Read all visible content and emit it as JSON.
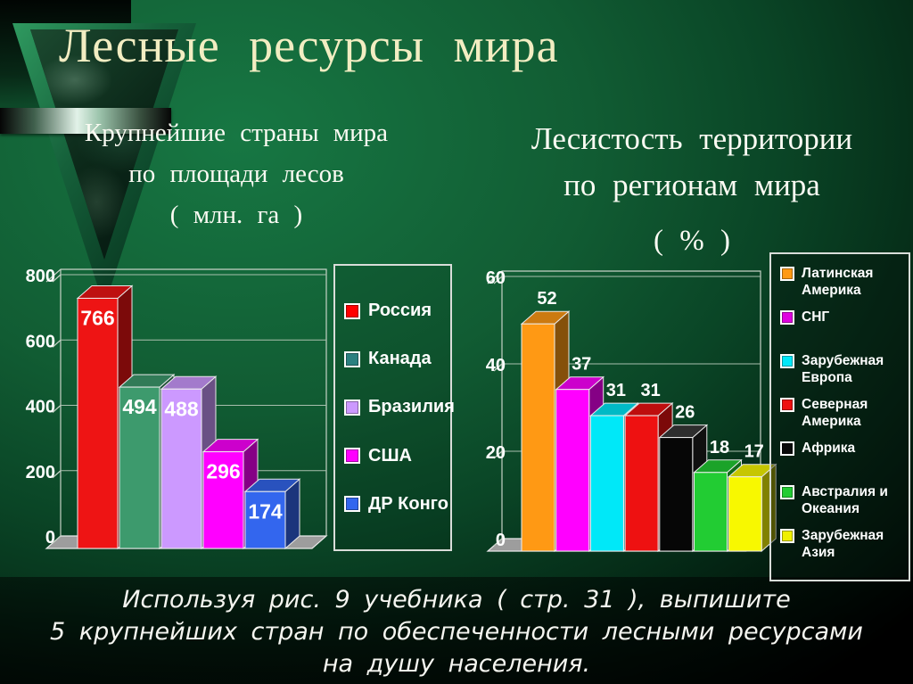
{
  "slide": {
    "title": "Лесные ресурсы мира",
    "task_lines": [
      "Используя рис. 9 учебника ( стр. 31 ),  выпишите",
      "5 крупнейших стран по обеспеченности  лесными ресурсами",
      "на душу населения."
    ]
  },
  "chart_data": [
    {
      "type": "bar",
      "title": "Крупнейшие страны мира по площади лесов ( млн. га )",
      "title_lines": [
        "Крупнейшие страны мира",
        "по площади лесов",
        "( млн. га )"
      ],
      "categories": [
        "Россия",
        "Канада",
        "Бразилия",
        "США",
        "ДР Конго"
      ],
      "values": [
        766,
        494,
        488,
        296,
        174
      ],
      "bar_colors": [
        "#ee1414",
        "#3d9a6d",
        "#cc99ff",
        "#ff00ff",
        "#3366ee"
      ],
      "legend_colors": [
        "#ff0000",
        "#2b8080",
        "#cc99ff",
        "#ff00ff",
        "#3366ee"
      ],
      "xlabel": "",
      "ylabel": "",
      "ylim": [
        0,
        800
      ],
      "yticks": [
        0,
        200,
        400,
        600,
        800
      ],
      "grid": true,
      "legend_position": "right",
      "value_labels": "inside-top",
      "style": "3d-column"
    },
    {
      "type": "bar",
      "title": "Лесистость территории по регионам мира ( % )",
      "title_lines": [
        "Лесистость территории",
        "по регионам мира",
        "( % )"
      ],
      "categories": [
        "Латинская Америка",
        "СНГ",
        "Зарубежная Европа",
        "Северная Америка",
        "Африка",
        "Австралия и Океания",
        "Зарубежная Азия"
      ],
      "values": [
        52,
        37,
        31,
        31,
        26,
        18,
        17
      ],
      "bar_colors": [
        "#ff9914",
        "#ff00ff",
        "#00e8f8",
        "#ee1111",
        "#060606",
        "#22cc33",
        "#f8f800"
      ],
      "legend_colors": [
        "#ff9914",
        "#e000e0",
        "#00e8f8",
        "#ee1111",
        "#0a0a0a",
        "#22cc33",
        "#f0f000"
      ],
      "xlabel": "",
      "ylabel": "",
      "ylim": [
        0,
        60
      ],
      "yticks": [
        0,
        20,
        40,
        60
      ],
      "grid": true,
      "legend_position": "right",
      "value_labels": "above",
      "style": "3d-column"
    }
  ]
}
